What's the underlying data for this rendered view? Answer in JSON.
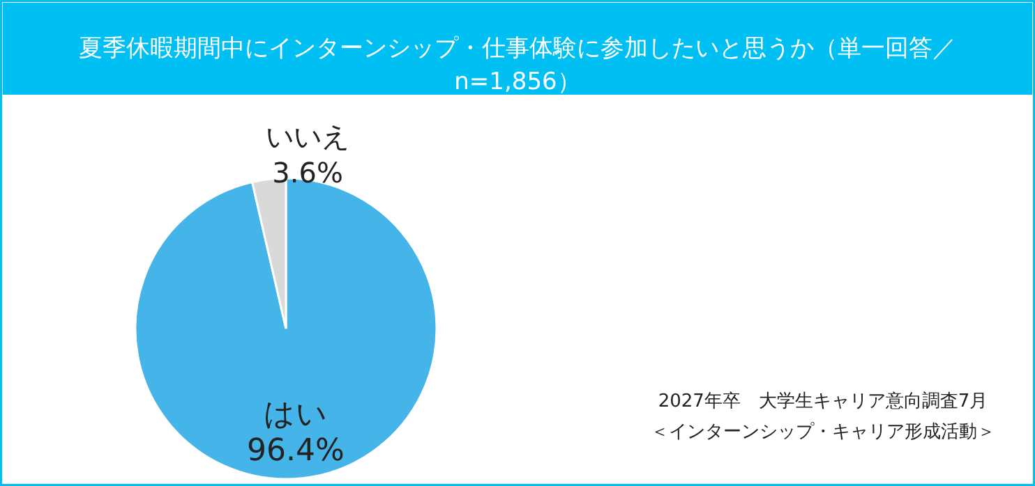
{
  "chart_data": {
    "type": "pie",
    "title": "夏季休暇期間中にインターンシップ・仕事体験に参加したいと思うか（単一回答／n=1,856）",
    "categories": [
      "はい",
      "いいえ"
    ],
    "values": [
      96.4,
      3.6
    ],
    "colors": [
      "#45b4e8",
      "#d9d9d9"
    ],
    "value_labels": [
      "96.4%",
      "3.6%"
    ],
    "annotations": [
      "2027年卒　大学生キャリア意向調査7月",
      "＜インターンシップ・キャリア形成活動＞"
    ]
  }
}
